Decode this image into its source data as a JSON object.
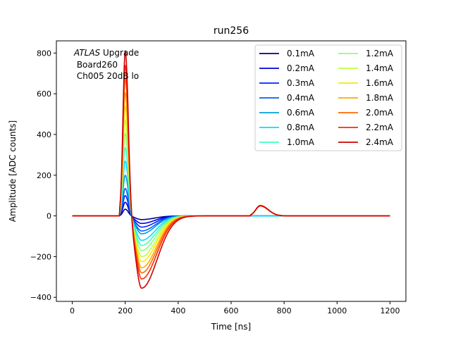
{
  "chart_data": {
    "type": "line",
    "title": "run256",
    "xlabel": "Time [ns]",
    "ylabel": "Amplitude [ADC counts]",
    "xlim": [
      -60,
      1260
    ],
    "ylim": [
      -420,
      860
    ],
    "xticks": [
      0,
      200,
      400,
      600,
      800,
      1000,
      1200
    ],
    "yticks": [
      -400,
      -200,
      0,
      200,
      400,
      600,
      800
    ],
    "grid": false,
    "legend_placement": "top-right",
    "legend_columns": 2,
    "annotation": {
      "line1_italic": "ATLAS",
      "line1_rest": " Upgrade",
      "line2": " Board260",
      "line3": " Ch005 20dB lo"
    },
    "series": [
      {
        "name": "0.1mA",
        "color": "#00008f",
        "peak": 33,
        "undershoot": -18,
        "bump": 0
      },
      {
        "name": "0.2mA",
        "color": "#0000d9",
        "peak": 67,
        "undershoot": -37,
        "bump": 0
      },
      {
        "name": "0.3mA",
        "color": "#0024ff",
        "peak": 100,
        "undershoot": -55,
        "bump": 0
      },
      {
        "name": "0.4mA",
        "color": "#0060ff",
        "peak": 135,
        "undershoot": -74,
        "bump": 0
      },
      {
        "name": "0.6mA",
        "color": "#00a0d8",
        "peak": 200,
        "undershoot": -88,
        "bump": 0
      },
      {
        "name": "0.8mA",
        "color": "#00e0ff",
        "peak": 270,
        "undershoot": -120,
        "bump": 0
      },
      {
        "name": "1.0mA",
        "color": "#40ffbf",
        "peak": 335,
        "undershoot": -145,
        "bump": 49
      },
      {
        "name": "1.2mA",
        "color": "#8fff70",
        "peak": 405,
        "undershoot": -170,
        "bump": 49
      },
      {
        "name": "1.4mA",
        "color": "#bfff40",
        "peak": 470,
        "undershoot": -200,
        "bump": 49
      },
      {
        "name": "1.6mA",
        "color": "#ffe600",
        "peak": 540,
        "undershoot": -225,
        "bump": 49
      },
      {
        "name": "1.8mA",
        "color": "#ffaa00",
        "peak": 605,
        "undershoot": -255,
        "bump": 49
      },
      {
        "name": "2.0mA",
        "color": "#ff6a00",
        "peak": 675,
        "undershoot": -280,
        "bump": 49
      },
      {
        "name": "2.2mA",
        "color": "#ff2800",
        "peak": 740,
        "undershoot": -310,
        "bump": 49
      },
      {
        "name": "2.4mA",
        "color": "#cf0000",
        "peak": 810,
        "undershoot": -355,
        "bump": 51
      }
    ]
  }
}
